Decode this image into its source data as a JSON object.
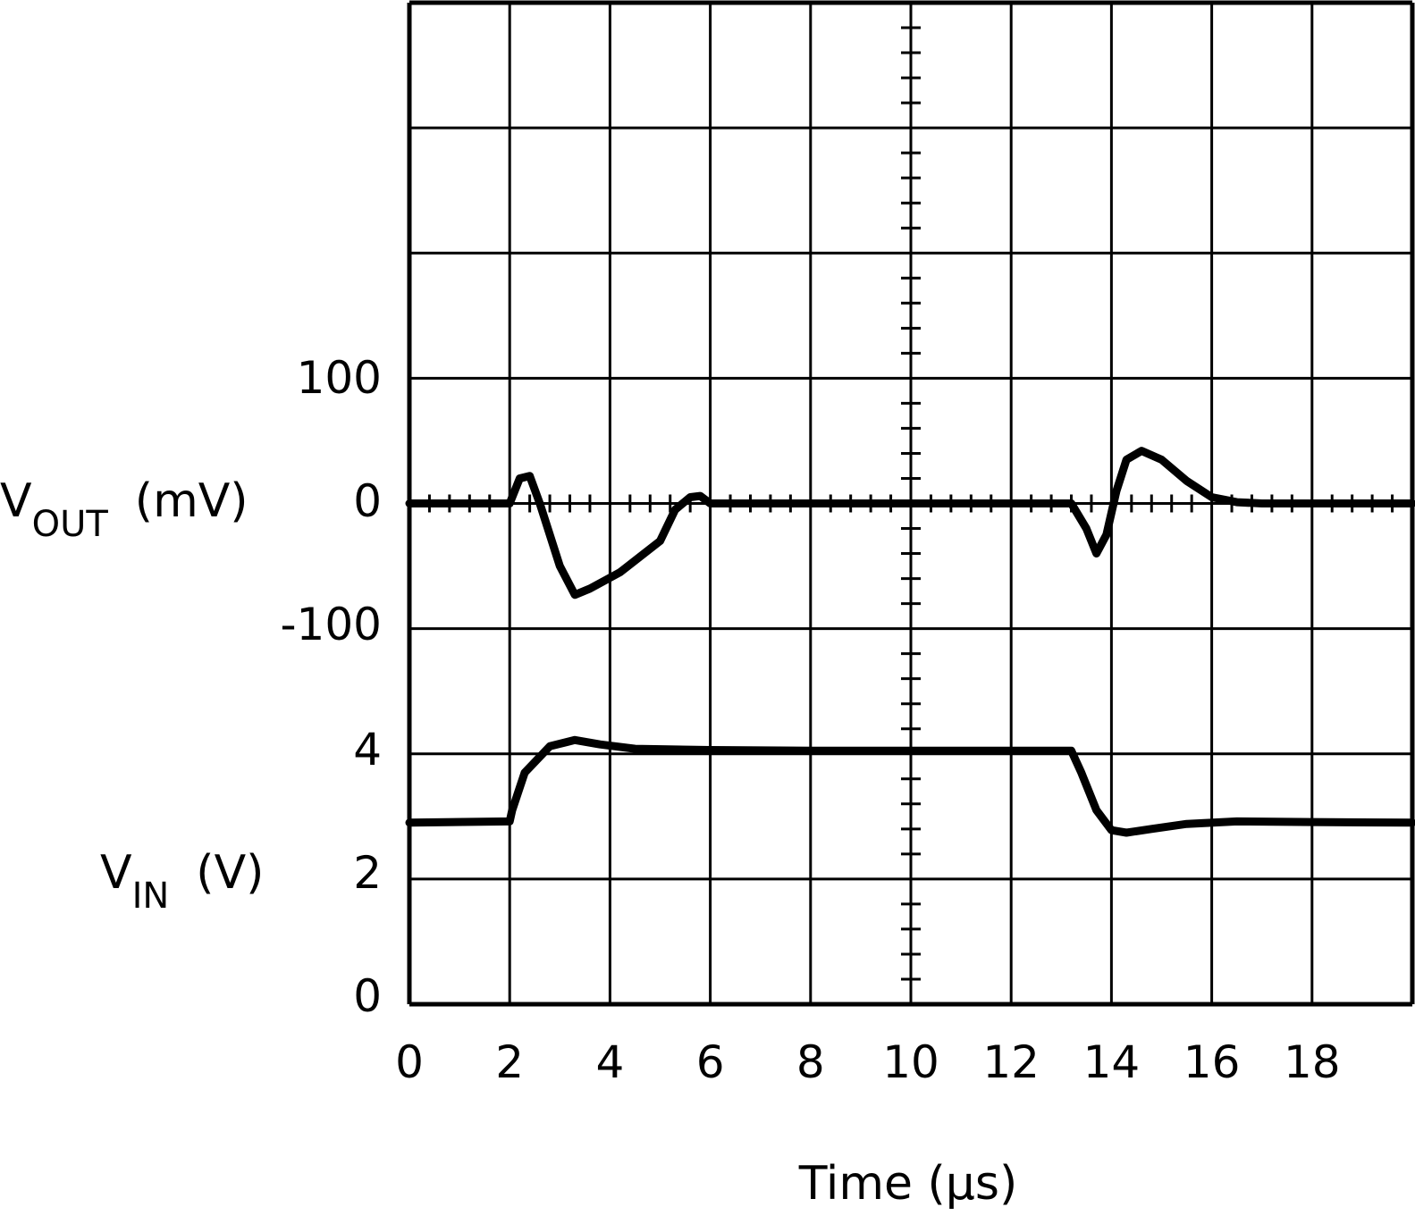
{
  "chart_data": {
    "type": "line",
    "xlabel": "Time (µs)",
    "x_ticks": [
      "0",
      "2",
      "4",
      "6",
      "8",
      "10",
      "12",
      "14",
      "16",
      "18"
    ],
    "xlim": [
      0,
      20
    ],
    "grid": true,
    "y_axes": {
      "vout": {
        "label_main": "V",
        "label_sub": "OUT",
        "label_unit": "(mV)",
        "ticks": [
          "100",
          "0",
          "-100"
        ]
      },
      "vin": {
        "label_main": "V",
        "label_sub": "IN",
        "label_unit": "(V)",
        "ticks": [
          "4",
          "2",
          "0"
        ]
      }
    },
    "series": [
      {
        "axis": "vout",
        "x": [
          0,
          2.0,
          2.2,
          2.4,
          2.6,
          3.0,
          3.3,
          3.6,
          4.2,
          5.0,
          5.3,
          5.6,
          5.8,
          6.0,
          6.2,
          8,
          10,
          12,
          13.2,
          13.5,
          13.7,
          13.9,
          14.1,
          14.3,
          14.6,
          15.0,
          15.5,
          16.0,
          16.5,
          17.0,
          18,
          20
        ],
        "y": [
          0,
          0,
          20,
          22,
          0,
          -50,
          -73,
          -68,
          -55,
          -30,
          -5,
          5,
          6,
          0,
          0,
          0,
          0,
          0,
          0,
          -20,
          -40,
          -25,
          10,
          35,
          42,
          35,
          18,
          5,
          1,
          0,
          0,
          0
        ]
      },
      {
        "axis": "vin",
        "x": [
          0,
          2.0,
          2.05,
          2.3,
          2.8,
          3.3,
          3.8,
          4.5,
          6,
          8,
          10,
          12,
          13.2,
          13.4,
          13.7,
          14.0,
          14.3,
          14.8,
          15.5,
          16.5,
          18,
          20
        ],
        "y": [
          2.9,
          2.92,
          3.1,
          3.7,
          4.12,
          4.22,
          4.15,
          4.08,
          4.06,
          4.05,
          4.05,
          4.05,
          4.05,
          3.7,
          3.1,
          2.78,
          2.74,
          2.8,
          2.88,
          2.92,
          2.91,
          2.9
        ]
      }
    ]
  }
}
